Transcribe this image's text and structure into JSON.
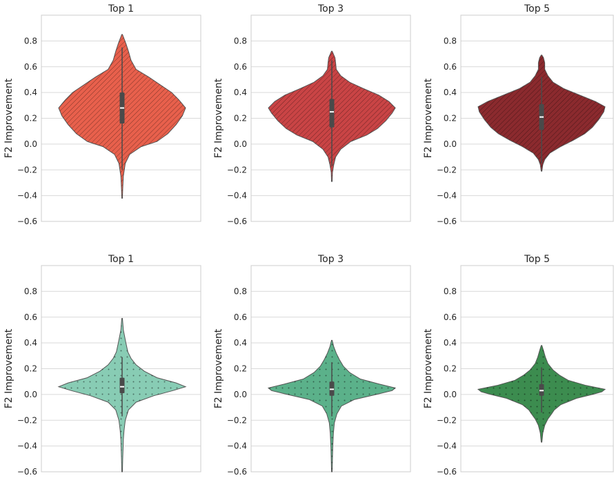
{
  "chart_data": [
    {
      "type": "violin",
      "title": "Top 1",
      "ylabel": "F2 Improvement",
      "ylim": [
        -0.6,
        1.0
      ],
      "yticks": [
        "−0.6",
        "−0.4",
        "−0.2",
        "0.0",
        "0.2",
        "0.4",
        "0.6",
        "0.8"
      ],
      "color": "#e8604c",
      "pattern": "diagonal-hatch",
      "range": [
        -0.42,
        0.85
      ],
      "quartiles": [
        0.16,
        0.28,
        0.4
      ],
      "whiskers": [
        -0.2,
        0.75
      ],
      "density": [
        [
          -0.42,
          0.005
        ],
        [
          -0.35,
          0.01
        ],
        [
          -0.25,
          0.02
        ],
        [
          -0.15,
          0.05
        ],
        [
          -0.08,
          0.12
        ],
        [
          -0.02,
          0.3
        ],
        [
          0.02,
          0.55
        ],
        [
          0.08,
          0.72
        ],
        [
          0.15,
          0.85
        ],
        [
          0.22,
          0.95
        ],
        [
          0.28,
          1.0
        ],
        [
          0.34,
          0.9
        ],
        [
          0.4,
          0.78
        ],
        [
          0.46,
          0.6
        ],
        [
          0.52,
          0.42
        ],
        [
          0.58,
          0.22
        ],
        [
          0.65,
          0.14
        ],
        [
          0.72,
          0.1
        ],
        [
          0.78,
          0.06
        ],
        [
          0.85,
          0.005
        ]
      ]
    },
    {
      "type": "violin",
      "title": "Top 3",
      "ylabel": "F2 Improvement",
      "ylim": [
        -0.6,
        1.0
      ],
      "yticks": [
        "−0.6",
        "−0.4",
        "−0.2",
        "0.0",
        "0.2",
        "0.4",
        "0.6",
        "0.8"
      ],
      "color": "#c94445",
      "pattern": "diagonal-hatch",
      "range": [
        -0.29,
        0.72
      ],
      "quartiles": [
        0.13,
        0.25,
        0.35
      ],
      "whiskers": [
        -0.17,
        0.65
      ],
      "density": [
        [
          -0.29,
          0.005
        ],
        [
          -0.22,
          0.01
        ],
        [
          -0.16,
          0.03
        ],
        [
          -0.1,
          0.06
        ],
        [
          -0.04,
          0.14
        ],
        [
          0.02,
          0.3
        ],
        [
          0.07,
          0.55
        ],
        [
          0.12,
          0.72
        ],
        [
          0.18,
          0.85
        ],
        [
          0.24,
          0.95
        ],
        [
          0.28,
          1.0
        ],
        [
          0.33,
          0.9
        ],
        [
          0.38,
          0.74
        ],
        [
          0.43,
          0.5
        ],
        [
          0.48,
          0.28
        ],
        [
          0.53,
          0.14
        ],
        [
          0.58,
          0.07
        ],
        [
          0.63,
          0.06
        ],
        [
          0.67,
          0.05
        ],
        [
          0.72,
          0.005
        ]
      ]
    },
    {
      "type": "violin",
      "title": "Top 5",
      "ylabel": "F2 Improvement",
      "ylim": [
        -0.6,
        1.0
      ],
      "yticks": [
        "−0.6",
        "−0.4",
        "−0.2",
        "0.0",
        "0.2",
        "0.4",
        "0.6",
        "0.8"
      ],
      "color": "#8b2a2e",
      "pattern": "diagonal-hatch",
      "range": [
        -0.21,
        0.69
      ],
      "quartiles": [
        0.11,
        0.21,
        0.31
      ],
      "whiskers": [
        -0.15,
        0.52
      ],
      "density": [
        [
          -0.21,
          0.005
        ],
        [
          -0.16,
          0.02
        ],
        [
          -0.12,
          0.05
        ],
        [
          -0.07,
          0.13
        ],
        [
          -0.02,
          0.3
        ],
        [
          0.03,
          0.5
        ],
        [
          0.08,
          0.68
        ],
        [
          0.13,
          0.8
        ],
        [
          0.19,
          0.9
        ],
        [
          0.25,
          0.98
        ],
        [
          0.29,
          1.0
        ],
        [
          0.33,
          0.85
        ],
        [
          0.38,
          0.6
        ],
        [
          0.43,
          0.35
        ],
        [
          0.48,
          0.18
        ],
        [
          0.53,
          0.1
        ],
        [
          0.58,
          0.05
        ],
        [
          0.63,
          0.05
        ],
        [
          0.67,
          0.03
        ],
        [
          0.69,
          0.005
        ]
      ]
    },
    {
      "type": "violin",
      "title": "Top 1",
      "ylabel": "F2 Improvement",
      "ylim": [
        -0.6,
        1.0
      ],
      "yticks": [
        "−0.6",
        "−0.4",
        "−0.2",
        "0.0",
        "0.2",
        "0.4",
        "0.6",
        "0.8"
      ],
      "color": "#88ccb4",
      "pattern": "dots",
      "range": [
        -0.6,
        0.59
      ],
      "quartiles": [
        0.01,
        0.06,
        0.13
      ],
      "whiskers": [
        -0.17,
        0.29
      ],
      "density": [
        [
          -0.6,
          0.005
        ],
        [
          -0.5,
          0.01
        ],
        [
          -0.42,
          0.015
        ],
        [
          -0.35,
          0.02
        ],
        [
          -0.28,
          0.03
        ],
        [
          -0.2,
          0.05
        ],
        [
          -0.12,
          0.1
        ],
        [
          -0.06,
          0.22
        ],
        [
          -0.01,
          0.5
        ],
        [
          0.03,
          0.8
        ],
        [
          0.06,
          1.0
        ],
        [
          0.09,
          0.85
        ],
        [
          0.13,
          0.55
        ],
        [
          0.18,
          0.35
        ],
        [
          0.23,
          0.22
        ],
        [
          0.28,
          0.14
        ],
        [
          0.33,
          0.09
        ],
        [
          0.4,
          0.06
        ],
        [
          0.5,
          0.02
        ],
        [
          0.59,
          0.005
        ]
      ]
    },
    {
      "type": "violin",
      "title": "Top 3",
      "ylabel": "F2 Improvement",
      "ylim": [
        -0.6,
        1.0
      ],
      "yticks": [
        "−0.6",
        "−0.4",
        "−0.2",
        "0.0",
        "0.2",
        "0.4",
        "0.6",
        "0.8"
      ],
      "color": "#5bb18a",
      "pattern": "dots",
      "range": [
        -0.6,
        0.42
      ],
      "quartiles": [
        -0.01,
        0.04,
        0.1
      ],
      "whiskers": [
        -0.17,
        0.25
      ],
      "density": [
        [
          -0.6,
          0.005
        ],
        [
          -0.5,
          0.01
        ],
        [
          -0.4,
          0.015
        ],
        [
          -0.3,
          0.025
        ],
        [
          -0.22,
          0.04
        ],
        [
          -0.15,
          0.08
        ],
        [
          -0.09,
          0.15
        ],
        [
          -0.04,
          0.35
        ],
        [
          0.0,
          0.7
        ],
        [
          0.03,
          0.95
        ],
        [
          0.05,
          1.0
        ],
        [
          0.08,
          0.75
        ],
        [
          0.12,
          0.45
        ],
        [
          0.17,
          0.28
        ],
        [
          0.22,
          0.18
        ],
        [
          0.27,
          0.12
        ],
        [
          0.32,
          0.07
        ],
        [
          0.37,
          0.03
        ],
        [
          0.42,
          0.005
        ]
      ]
    },
    {
      "type": "violin",
      "title": "Top 5",
      "ylabel": "F2 Improvement",
      "ylim": [
        -0.6,
        1.0
      ],
      "yticks": [
        "−0.6",
        "−0.4",
        "−0.2",
        "0.0",
        "0.2",
        "0.4",
        "0.6",
        "0.8"
      ],
      "color": "#3c8c4f",
      "pattern": "dots",
      "range": [
        -0.37,
        0.38
      ],
      "quartiles": [
        -0.01,
        0.03,
        0.08
      ],
      "whiskers": [
        -0.14,
        0.21
      ],
      "density": [
        [
          -0.37,
          0.005
        ],
        [
          -0.3,
          0.02
        ],
        [
          -0.24,
          0.05
        ],
        [
          -0.19,
          0.1
        ],
        [
          -0.15,
          0.16
        ],
        [
          -0.12,
          0.2
        ],
        [
          -0.08,
          0.3
        ],
        [
          -0.03,
          0.55
        ],
        [
          0.0,
          0.8
        ],
        [
          0.02,
          0.95
        ],
        [
          0.04,
          1.0
        ],
        [
          0.07,
          0.7
        ],
        [
          0.11,
          0.42
        ],
        [
          0.15,
          0.28
        ],
        [
          0.19,
          0.18
        ],
        [
          0.24,
          0.1
        ],
        [
          0.29,
          0.06
        ],
        [
          0.34,
          0.03
        ],
        [
          0.38,
          0.005
        ]
      ]
    }
  ]
}
